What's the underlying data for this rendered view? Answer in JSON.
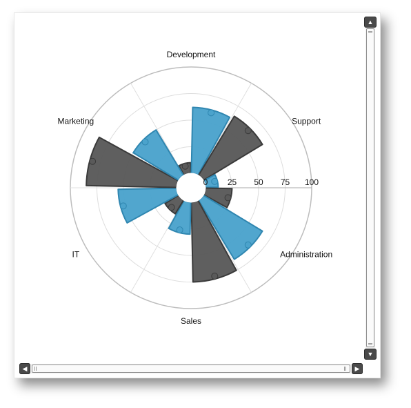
{
  "chart_data": {
    "type": "polar-bar",
    "title": "",
    "categories": [
      "Development",
      "Support",
      "Administration",
      "Sales",
      "IT",
      "Marketing"
    ],
    "series": [
      {
        "color": "#5a5a5a",
        "values": [
          10,
          65,
          25,
          75,
          15,
          85
        ]
      },
      {
        "color": "#4ba3cc",
        "values": [
          62,
          12,
          65,
          30,
          55,
          50
        ]
      }
    ],
    "radial_axis": {
      "ticks": [
        0,
        25,
        50,
        75,
        100
      ],
      "min": 0,
      "max": 100
    },
    "grid": true
  },
  "scrollbars": {
    "up_icon": "▲",
    "down_icon": "▼",
    "left_icon": "◀",
    "right_icon": "▶"
  }
}
